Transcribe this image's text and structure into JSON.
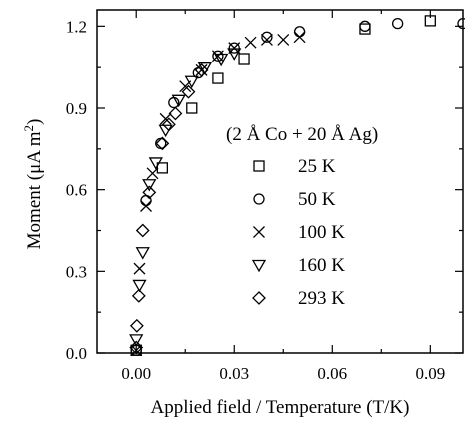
{
  "chart_data": {
    "type": "scatter",
    "xlabel": "Applied field / Temperature (T/K)",
    "ylabel": "Moment (μA m²)",
    "ylabel_parts": {
      "main": "Moment (μA m",
      "sup": "2",
      "close": ")"
    },
    "xlim": [
      -0.012,
      0.1
    ],
    "ylim": [
      0,
      1.26
    ],
    "xticks": [
      0,
      0.03,
      0.06,
      0.09
    ],
    "xtick_labels": [
      "0.00",
      "0.03",
      "0.06",
      "0.09"
    ],
    "yticks": [
      0,
      0.3,
      0.6,
      0.9,
      1.2
    ],
    "ytick_labels": [
      "0.0",
      "0.3",
      "0.6",
      "0.9",
      "1.2"
    ],
    "grid": false,
    "legend_title": "(2 Å Co + 20 Å Ag)",
    "legend_position": "center-right",
    "series": [
      {
        "name": "25 K",
        "marker": "square",
        "points": [
          [
            0.0,
            0.01
          ],
          [
            0.008,
            0.68
          ],
          [
            0.017,
            0.9
          ],
          [
            0.025,
            1.01
          ],
          [
            0.033,
            1.08
          ],
          [
            0.07,
            1.19
          ],
          [
            0.09,
            1.22
          ]
        ]
      },
      {
        "name": "50 K",
        "marker": "circle",
        "points": [
          [
            0.0,
            0.01
          ],
          [
            0.003,
            0.56
          ],
          [
            0.0075,
            0.77
          ],
          [
            0.0115,
            0.92
          ],
          [
            0.019,
            1.03
          ],
          [
            0.025,
            1.09
          ],
          [
            0.03,
            1.12
          ],
          [
            0.04,
            1.16
          ],
          [
            0.05,
            1.18
          ],
          [
            0.07,
            1.2
          ],
          [
            0.08,
            1.21
          ],
          [
            0.1,
            1.21
          ]
        ]
      },
      {
        "name": "100 K",
        "marker": "x",
        "points": [
          [
            0.0,
            0.01
          ],
          [
            0.001,
            0.31
          ],
          [
            0.003,
            0.54
          ],
          [
            0.005,
            0.66
          ],
          [
            0.009,
            0.86
          ],
          [
            0.015,
            0.98
          ],
          [
            0.02,
            1.04
          ],
          [
            0.025,
            1.09
          ],
          [
            0.03,
            1.12
          ],
          [
            0.035,
            1.14
          ],
          [
            0.04,
            1.15
          ],
          [
            0.045,
            1.15
          ],
          [
            0.05,
            1.16
          ]
        ]
      },
      {
        "name": "160 K",
        "marker": "triangle-down",
        "points": [
          [
            0.0,
            0.05
          ],
          [
            0.001,
            0.25
          ],
          [
            0.002,
            0.37
          ],
          [
            0.004,
            0.62
          ],
          [
            0.006,
            0.7
          ],
          [
            0.009,
            0.82
          ],
          [
            0.013,
            0.93
          ],
          [
            0.017,
            1.0
          ],
          [
            0.021,
            1.05
          ],
          [
            0.026,
            1.08
          ],
          [
            0.03,
            1.1
          ]
        ]
      },
      {
        "name": "293 K",
        "marker": "diamond",
        "points": [
          [
            0.0,
            0.02
          ],
          [
            0.0002,
            0.1
          ],
          [
            0.0008,
            0.21
          ],
          [
            0.002,
            0.45
          ],
          [
            0.004,
            0.59
          ],
          [
            0.008,
            0.77
          ],
          [
            0.01,
            0.84
          ],
          [
            0.012,
            0.88
          ],
          [
            0.016,
            0.96
          ],
          [
            0.02,
            1.04
          ]
        ]
      }
    ]
  }
}
